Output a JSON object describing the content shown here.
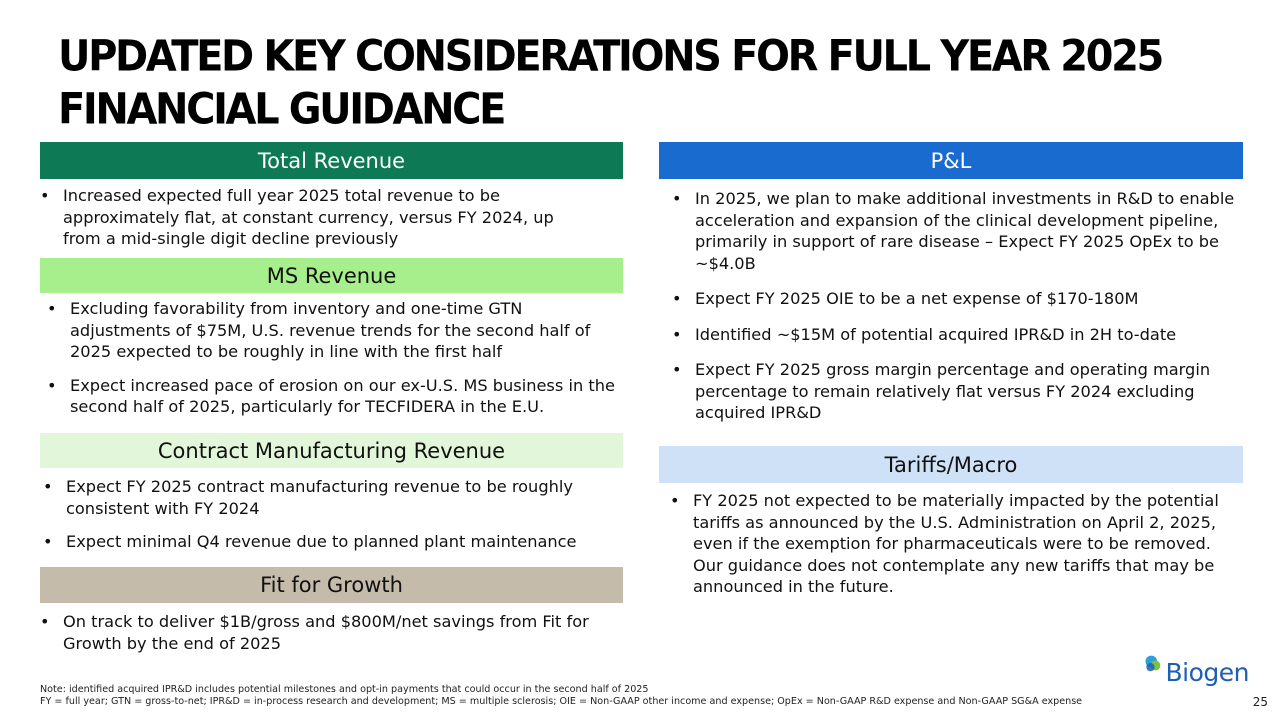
{
  "title": {
    "line1": "UPDATED KEY CONSIDERATIONS FOR FULL YEAR 2025",
    "line2": "FINANCIAL GUIDANCE"
  },
  "sections": {
    "total_revenue": {
      "heading": "Total Revenue",
      "color": "#0e7a55",
      "bullets": [
        "Increased expected full year 2025 total revenue to be approximately flat, at constant currency, versus FY 2024, up from a mid-single digit decline previously"
      ]
    },
    "ms_revenue": {
      "heading": "MS Revenue",
      "color": "#a7ee8c",
      "bullets": [
        "Excluding favorability from inventory and one-time GTN adjustments of $75M, U.S. revenue trends for the second half of 2025 expected to be roughly in line with the first half",
        "Expect increased pace of erosion on our ex-U.S. MS business in the second half of 2025, particularly for TECFIDERA in the E.U."
      ]
    },
    "contract_manufacturing": {
      "heading": "Contract Manufacturing Revenue",
      "color": "#e2f6da",
      "bullets": [
        "Expect FY 2025 contract manufacturing revenue to be roughly consistent with FY 2024",
        "Expect minimal Q4 revenue due to planned plant maintenance"
      ]
    },
    "fit_for_growth": {
      "heading": "Fit for Growth",
      "color": "#c4bbaa",
      "bullets": [
        "On track to deliver $1B/gross and $800M/net savings from Fit for Growth by the end of 2025"
      ]
    },
    "pl": {
      "heading": "P&L",
      "color": "#1a6bd0",
      "bullets": [
        "In 2025, we plan to make additional investments in R&D to enable acceleration and expansion of the clinical development pipeline, primarily in support of rare disease – Expect FY 2025 OpEx to be ~$4.0B",
        "Expect FY 2025 OIE to be a net expense of $170-180M",
        "Identified ~$15M of potential acquired IPR&D in 2H to-date",
        "Expect FY 2025 gross margin percentage and operating margin percentage to remain relatively flat versus FY 2024 excluding acquired IPR&D"
      ]
    },
    "tariffs_macro": {
      "heading": "Tariffs/Macro",
      "color": "#cfe1f6",
      "bullets": [
        "FY 2025 not expected to be materially impacted by the potential tariffs as announced by the U.S. Administration on April 2, 2025, even if the exemption for pharmaceuticals were to be removed. Our guidance does not contemplate any new tariffs that may be announced in the future."
      ]
    }
  },
  "footnote": {
    "line1": "Note: identified acquired IPR&D includes potential milestones and opt-in payments that could occur in the second half of 2025",
    "line2": "FY = full year; GTN = gross-to-net; IPR&D = in-process research and development; MS = multiple sclerosis; OIE = Non-GAAP other income and expense; OpEx = Non-GAAP R&D expense and Non-GAAP SG&A expense"
  },
  "logo": {
    "text": "Biogen",
    "color": "#1f5fb2"
  },
  "page_number": "25"
}
